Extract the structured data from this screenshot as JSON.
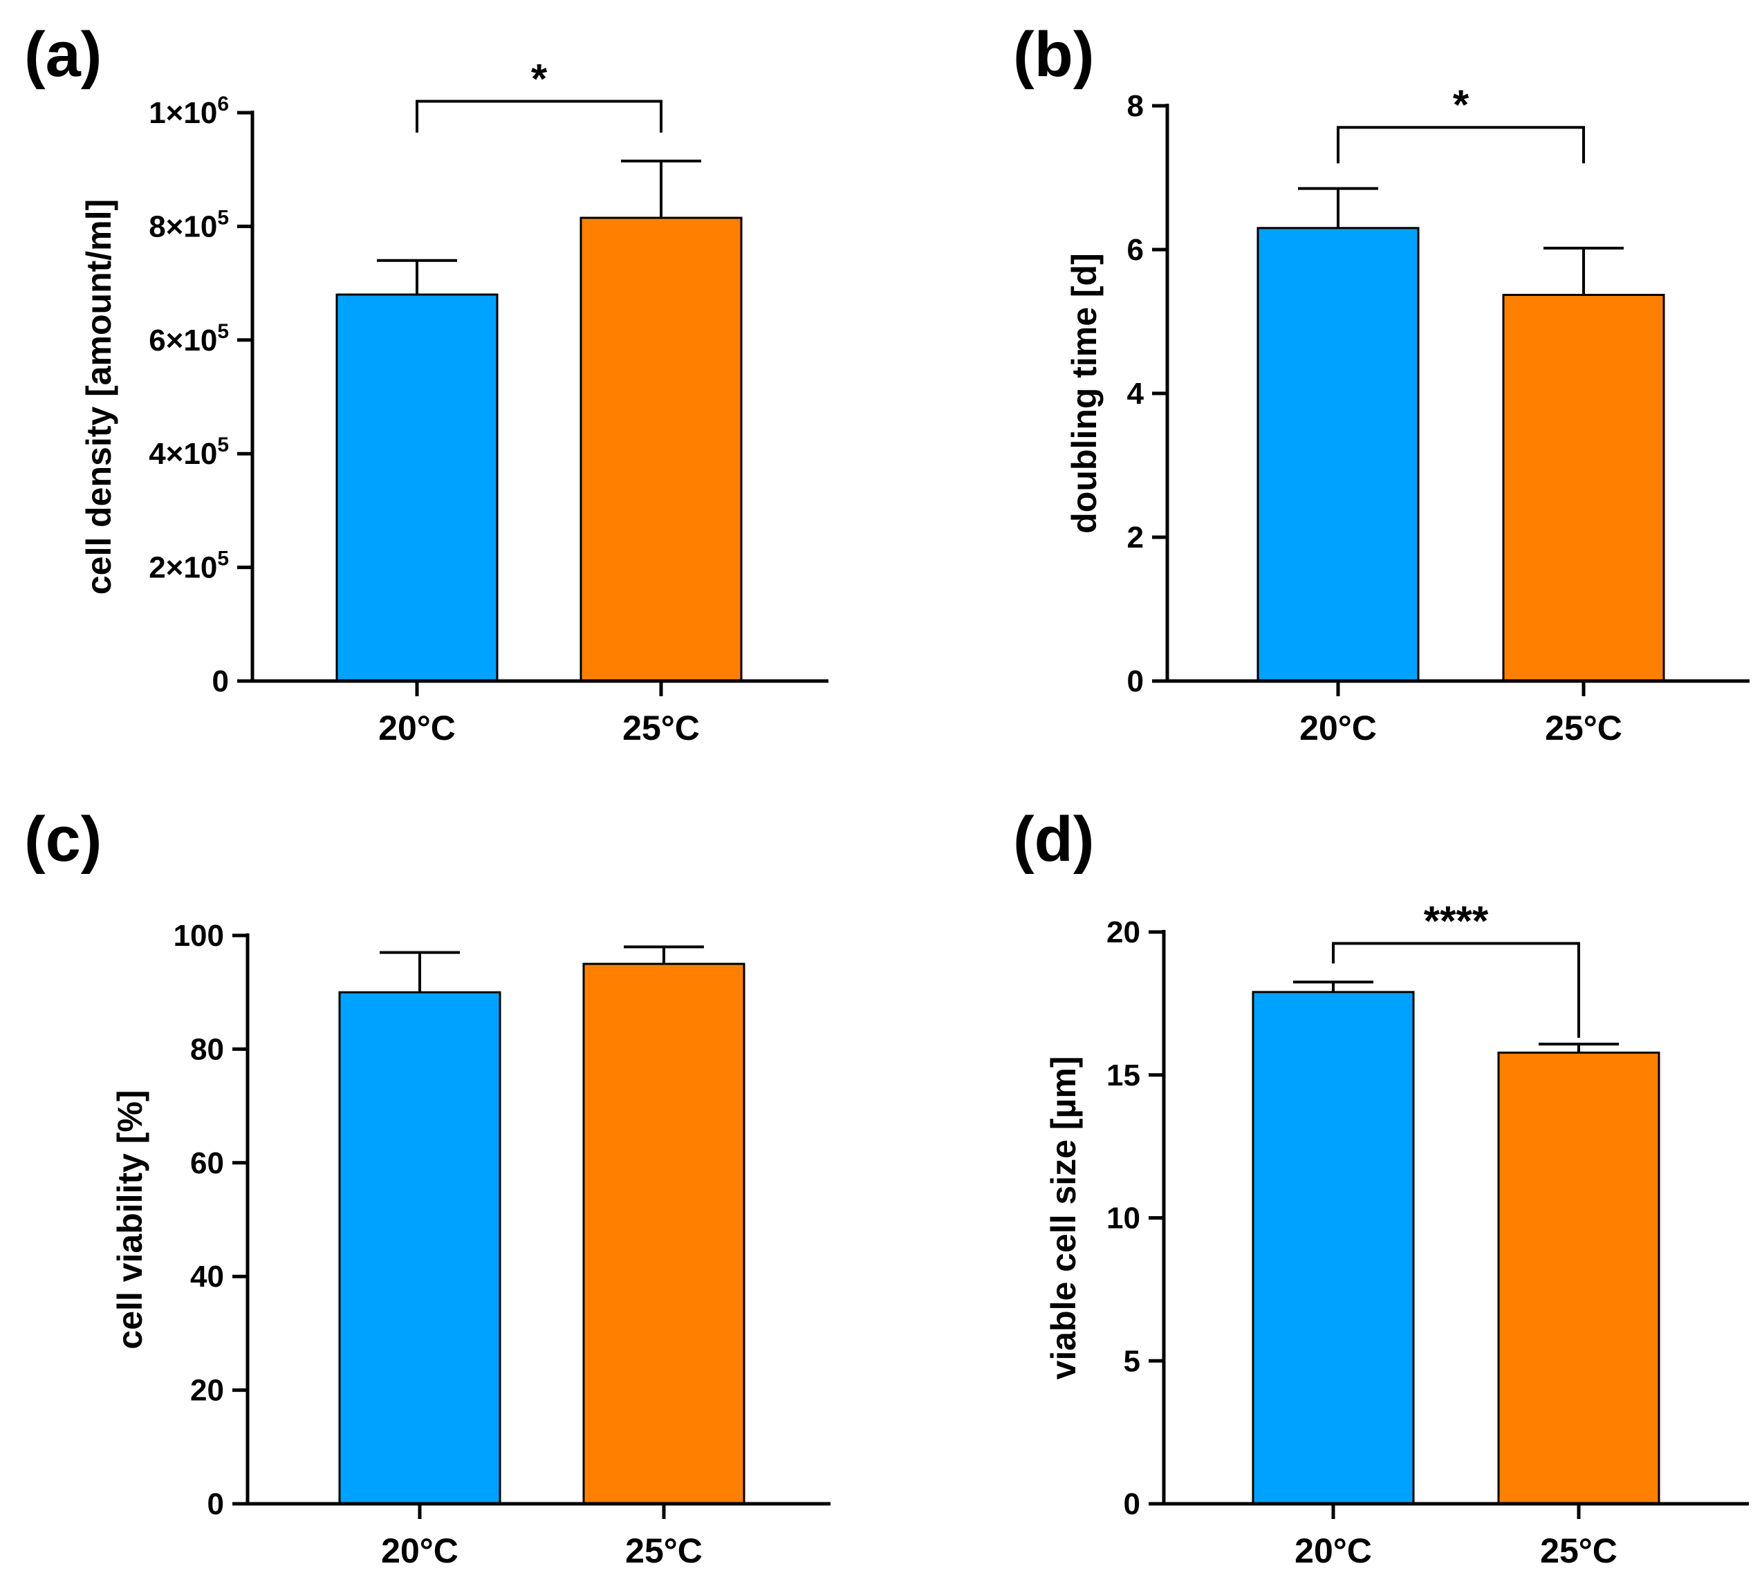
{
  "figure": {
    "colors": {
      "bar_20": "#00A2FF",
      "bar_25": "#FF8000",
      "ink": "#000000"
    }
  },
  "chart_data": [
    {
      "type": "bar",
      "panel_label": "(a)",
      "categories": [
        "20°C",
        "25°C"
      ],
      "values": [
        680000,
        815000
      ],
      "errors": [
        60000,
        100000
      ],
      "ylabel": "cell density [amount/ml]",
      "ylim": [
        0,
        1000000
      ],
      "yticks": [
        0,
        200000,
        400000,
        600000,
        800000,
        1000000
      ],
      "ytick_labels": [
        "0",
        "2×10",
        "4×10",
        "6×10",
        "8×10",
        "1×10"
      ],
      "ytick_exponents": [
        "",
        "5",
        "5",
        "5",
        "5",
        "6"
      ],
      "significance": {
        "label": "*",
        "between": [
          0,
          1
        ],
        "y": 1020000,
        "left_drop": 965000,
        "right_drop": 965000
      }
    },
    {
      "type": "bar",
      "panel_label": "(b)",
      "categories": [
        "20°C",
        "25°C"
      ],
      "values": [
        6.3,
        5.37
      ],
      "errors": [
        0.55,
        0.65
      ],
      "ylabel": "doubling time [d]",
      "ylim": [
        0,
        8
      ],
      "yticks": [
        0,
        2,
        4,
        6,
        8
      ],
      "ytick_labels": [
        "0",
        "2",
        "4",
        "6",
        "8"
      ],
      "ytick_exponents": [
        "",
        "",
        "",
        "",
        ""
      ],
      "significance": {
        "label": "*",
        "between": [
          0,
          1
        ],
        "y": 7.7,
        "left_drop": 7.2,
        "right_drop": 7.2
      }
    },
    {
      "type": "bar",
      "panel_label": "(c)",
      "categories": [
        "20°C",
        "25°C"
      ],
      "values": [
        90,
        95
      ],
      "errors": [
        7,
        3
      ],
      "ylabel": "cell viability [%]",
      "ylim": [
        0,
        100
      ],
      "yticks": [
        0,
        20,
        40,
        60,
        80,
        100
      ],
      "ytick_labels": [
        "0",
        "20",
        "40",
        "60",
        "80",
        "100"
      ],
      "ytick_exponents": [
        "",
        "",
        "",
        "",
        "",
        ""
      ]
    },
    {
      "type": "bar",
      "panel_label": "(d)",
      "categories": [
        "20°C",
        "25°C"
      ],
      "values": [
        17.9,
        15.78
      ],
      "errors": [
        0.35,
        0.3
      ],
      "ylabel": "viable cell size [µm]",
      "ylim": [
        0,
        20
      ],
      "yticks": [
        0,
        5,
        10,
        15,
        20
      ],
      "ytick_labels": [
        "0",
        "5",
        "10",
        "15",
        "20"
      ],
      "ytick_exponents": [
        "",
        "",
        "",
        "",
        ""
      ],
      "significance": {
        "label": "****",
        "between": [
          0,
          1
        ],
        "y": 19.6,
        "left_drop": 18.9,
        "right_drop": 16.3
      }
    }
  ]
}
